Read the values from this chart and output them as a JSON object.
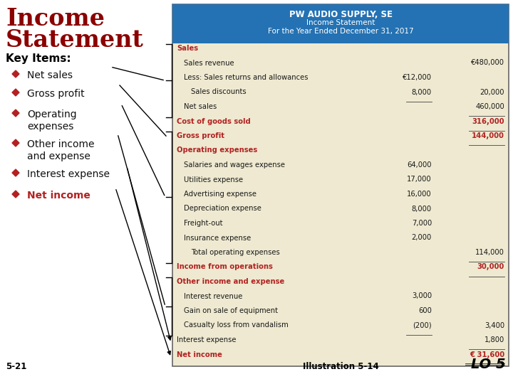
{
  "header_bg": "#2472B3",
  "header_text_color": "#FFFFFF",
  "table_bg": "#EEE9D0",
  "red_color": "#B22222",
  "dark_red": "#8B0000",
  "body_text_color": "#1A1A1A",
  "page_bg": "#FFFFFF",
  "header_line1": "PW AUDIO SUPPLY, SE",
  "header_line2": "Income Statement",
  "header_line3": "For the Year Ended December 31, 2017",
  "rows": [
    {
      "label": "Sales",
      "col1": "",
      "col2": "",
      "style": "red_bold",
      "indent": 0
    },
    {
      "label": "Sales revenue",
      "col1": "",
      "col2": "€480,000",
      "style": "normal",
      "indent": 1
    },
    {
      "label": "Less: Sales returns and allowances",
      "col1": "€12,000",
      "col2": "",
      "style": "normal",
      "indent": 1
    },
    {
      "label": "Sales discounts",
      "col1": "8,000",
      "col2": "20,000",
      "style": "normal",
      "indent": 2,
      "col1_underline": true
    },
    {
      "label": "Net sales",
      "col1": "",
      "col2": "460,000",
      "style": "normal",
      "indent": 1,
      "col2_underline": true
    },
    {
      "label": "Cost of goods sold",
      "col1": "",
      "col2": "316,000",
      "style": "red_bold",
      "indent": 0,
      "col2_underline": true
    },
    {
      "label": "Gross profit",
      "col1": "",
      "col2": "144,000",
      "style": "red_bold",
      "indent": 0,
      "col2_underline": true
    },
    {
      "label": "Operating expenses",
      "col1": "",
      "col2": "",
      "style": "red_bold",
      "indent": 0
    },
    {
      "label": "Salaries and wages expense",
      "col1": "64,000",
      "col2": "",
      "style": "normal",
      "indent": 1
    },
    {
      "label": "Utilities expense",
      "col1": "17,000",
      "col2": "",
      "style": "normal",
      "indent": 1
    },
    {
      "label": "Advertising expense",
      "col1": "16,000",
      "col2": "",
      "style": "normal",
      "indent": 1
    },
    {
      "label": "Depreciation expense",
      "col1": "8,000",
      "col2": "",
      "style": "normal",
      "indent": 1
    },
    {
      "label": "Freight-out",
      "col1": "7,000",
      "col2": "",
      "style": "normal",
      "indent": 1
    },
    {
      "label": "Insurance expense",
      "col1": "2,000",
      "col2": "",
      "style": "normal",
      "indent": 1
    },
    {
      "label": "Total operating expenses",
      "col1": "",
      "col2": "114,000",
      "style": "normal",
      "indent": 2,
      "col2_underline": true
    },
    {
      "label": "Income from operations",
      "col1": "",
      "col2": "30,000",
      "style": "red_bold",
      "indent": 0,
      "col2_underline": true
    },
    {
      "label": "Other income and expense",
      "col1": "",
      "col2": "",
      "style": "red_bold",
      "indent": 0
    },
    {
      "label": "Interest revenue",
      "col1": "3,000",
      "col2": "",
      "style": "normal",
      "indent": 1
    },
    {
      "label": "Gain on sale of equipment",
      "col1": "600",
      "col2": "",
      "style": "normal",
      "indent": 1
    },
    {
      "label": "Casualty loss from vandalism",
      "col1": "(200)",
      "col2": "3,400",
      "style": "normal",
      "indent": 1,
      "col1_underline": true
    },
    {
      "label": "Interest expense",
      "col1": "",
      "col2": "1,800",
      "style": "normal",
      "indent": 0,
      "col2_underline": true
    },
    {
      "label": "Net income",
      "col1": "",
      "col2": "€ 31,600",
      "style": "red_bold",
      "indent": 0,
      "col2_double_underline": true
    }
  ],
  "footer_left": "5-21",
  "footer_center": "Illustration 5-14",
  "footer_right": "LO 5",
  "title_line1": "Income",
  "title_line2": "Statement",
  "key_items_label": "Key Items:",
  "bullets": [
    {
      "text": "Net sales",
      "bold": false,
      "red": false
    },
    {
      "text": "Gross profit",
      "bold": false,
      "red": false
    },
    {
      "text": "Operating\nexpenses",
      "bold": false,
      "red": false
    },
    {
      "text": "Other income\nand expense",
      "bold": false,
      "red": false
    },
    {
      "text": "Interest expense",
      "bold": false,
      "red": false
    },
    {
      "text": "Net income",
      "bold": true,
      "red": true
    }
  ]
}
